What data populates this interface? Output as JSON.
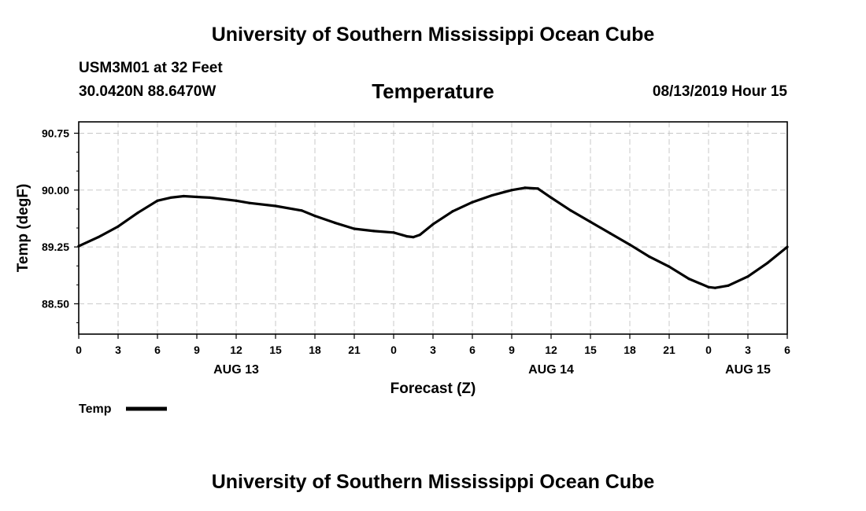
{
  "header": {
    "title": "University of Southern Mississippi Ocean Cube",
    "station": "USM3M01 at 32 Feet",
    "coordinates": "30.0420N 88.6470W",
    "variable": "Temperature",
    "datetime": "08/13/2019 Hour 15"
  },
  "footer": {
    "title": "University of Southern Mississippi Ocean Cube"
  },
  "chart_data": {
    "type": "line",
    "xlabel": "Forecast (Z)",
    "ylabel": "Temp (degF)",
    "ylim": [
      88.1,
      90.9
    ],
    "yticks": [
      88.5,
      89.25,
      90.0,
      90.75
    ],
    "ytick_labels": [
      "88.50",
      "89.25",
      "90.00",
      "90.75"
    ],
    "xlim": [
      0,
      54
    ],
    "xticks": [
      0,
      3,
      6,
      9,
      12,
      15,
      18,
      21,
      24,
      27,
      30,
      33,
      36,
      39,
      42,
      45,
      48,
      51,
      54
    ],
    "xtick_labels": [
      "0",
      "3",
      "6",
      "9",
      "12",
      "15",
      "18",
      "21",
      "0",
      "3",
      "6",
      "9",
      "12",
      "15",
      "18",
      "21",
      "0",
      "3",
      "6"
    ],
    "date_labels": [
      {
        "x": 12,
        "label": "AUG 13"
      },
      {
        "x": 36,
        "label": "AUG 14"
      },
      {
        "x": 51,
        "label": "AUG 15"
      }
    ],
    "grid": true,
    "legend_position": "bottom-left",
    "line_color": "#000000",
    "series": [
      {
        "name": "Temp",
        "x": [
          0,
          1.5,
          3,
          4.5,
          6,
          7,
          8,
          9,
          10,
          12,
          13,
          15,
          17,
          18,
          19.5,
          21,
          22.5,
          24,
          25,
          25.5,
          26,
          27,
          28.5,
          30,
          31.5,
          33,
          34,
          35,
          36,
          37.5,
          39,
          40.5,
          42,
          43.5,
          45,
          46.5,
          48,
          48.5,
          49.5,
          51,
          52.5,
          54
        ],
        "values": [
          89.26,
          89.38,
          89.52,
          89.7,
          89.86,
          89.9,
          89.92,
          89.91,
          89.9,
          89.86,
          89.83,
          89.79,
          89.73,
          89.66,
          89.57,
          89.49,
          89.46,
          89.44,
          89.39,
          89.38,
          89.41,
          89.55,
          89.72,
          89.84,
          89.93,
          90.0,
          90.03,
          90.02,
          89.9,
          89.73,
          89.58,
          89.43,
          89.28,
          89.12,
          88.99,
          88.83,
          88.72,
          88.71,
          88.74,
          88.86,
          89.04,
          89.25
        ]
      }
    ]
  }
}
